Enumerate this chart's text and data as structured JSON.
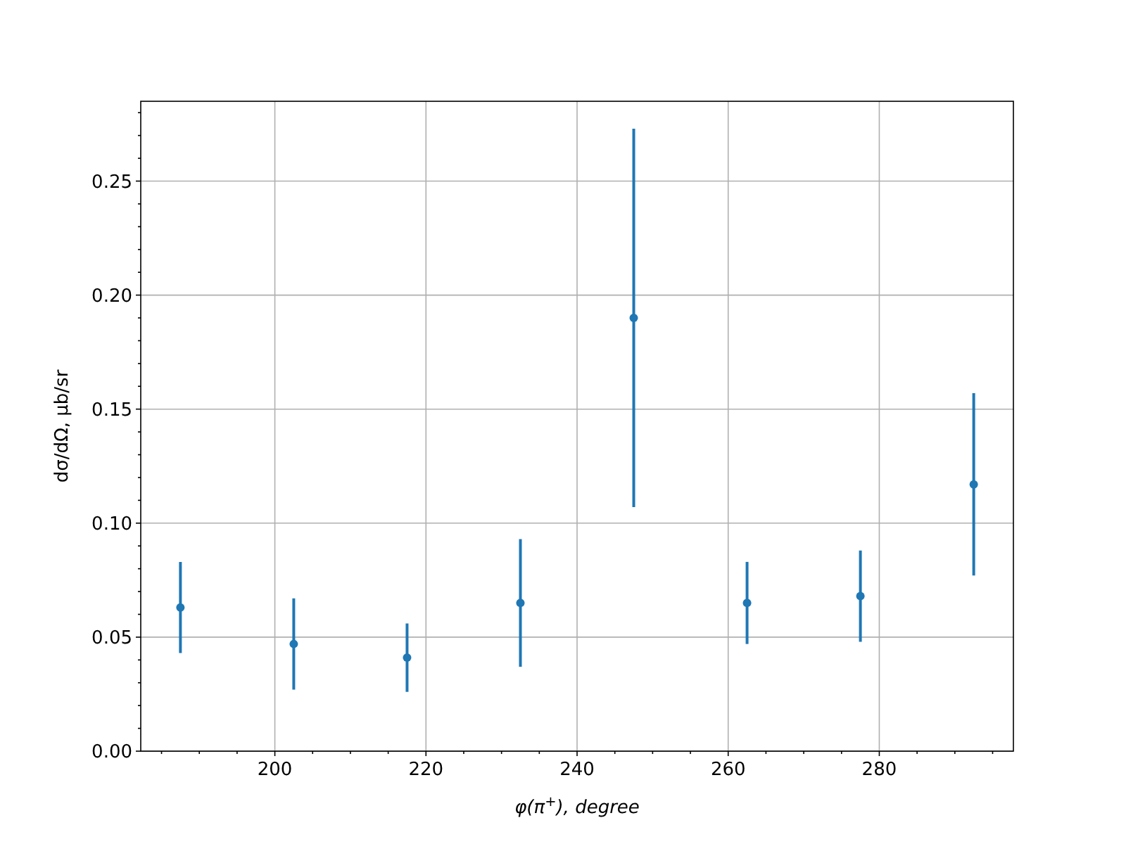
{
  "chart_data": {
    "type": "scatter",
    "xlabel": "φ(π$^{+}$), degree",
    "ylabel": "dσ/dΩ, μb/sr",
    "x": [
      187.5,
      202.5,
      217.5,
      232.5,
      247.5,
      262.5,
      277.5,
      292.5
    ],
    "series": [
      {
        "color": "#1f77b4",
        "values": [
          0.063,
          0.047,
          0.041,
          0.065,
          0.19,
          0.065,
          0.068,
          0.117
        ],
        "errors": [
          0.02,
          0.02,
          0.015,
          0.028,
          0.083,
          0.018,
          0.02,
          0.04
        ]
      }
    ],
    "xlim": [
      182.25,
      297.75
    ],
    "xticks": [
      {
        "value": 185,
        "label": null
      },
      {
        "value": 190,
        "label": null
      },
      {
        "value": 195,
        "label": null
      },
      200,
      {
        "value": 205,
        "label": null
      },
      {
        "value": 210,
        "label": null
      },
      {
        "value": 215,
        "label": null
      },
      220,
      {
        "value": 225,
        "label": null
      },
      {
        "value": 230,
        "label": null
      },
      {
        "value": 235,
        "label": null
      },
      240,
      {
        "value": 245,
        "label": null
      },
      {
        "value": 250,
        "label": null
      },
      {
        "value": 255,
        "label": null
      },
      260,
      {
        "value": 265,
        "label": null
      },
      {
        "value": 270,
        "label": null
      },
      {
        "value": 275,
        "label": null
      },
      280,
      {
        "value": 285,
        "label": null
      },
      {
        "value": 290,
        "label": null
      },
      {
        "value": 295,
        "label": null
      }
    ],
    "ylim": [
      0,
      0.285
    ],
    "yticks": [
      {
        "value": 0,
        "label": "0.00"
      },
      {
        "value": 0.01,
        "label": null
      },
      {
        "value": 0.02,
        "label": null
      },
      {
        "value": 0.03,
        "label": null
      },
      {
        "value": 0.04,
        "label": null
      },
      {
        "value": 0.05,
        "label": "0.05"
      },
      {
        "value": 0.06,
        "label": null
      },
      {
        "value": 0.07,
        "label": null
      },
      {
        "value": 0.08,
        "label": null
      },
      {
        "value": 0.09,
        "label": null
      },
      {
        "value": 0.1,
        "label": "0.10"
      },
      {
        "value": 0.11,
        "label": null
      },
      {
        "value": 0.12,
        "label": null
      },
      {
        "value": 0.13,
        "label": null
      },
      {
        "value": 0.14,
        "label": null
      },
      {
        "value": 0.15,
        "label": "0.15"
      },
      {
        "value": 0.16,
        "label": null
      },
      {
        "value": 0.17,
        "label": null
      },
      {
        "value": 0.18,
        "label": null
      },
      {
        "value": 0.19,
        "label": null
      },
      {
        "value": 0.2,
        "label": "0.20"
      },
      {
        "value": 0.21,
        "label": null
      },
      {
        "value": 0.22,
        "label": null
      },
      {
        "value": 0.23,
        "label": null
      },
      {
        "value": 0.24,
        "label": null
      },
      {
        "value": 0.25,
        "label": "0.25"
      },
      {
        "value": 0.26,
        "label": null
      },
      {
        "value": 0.27,
        "label": null
      },
      {
        "value": 0.28,
        "label": null
      }
    ],
    "grid": true,
    "marker": "circle"
  }
}
